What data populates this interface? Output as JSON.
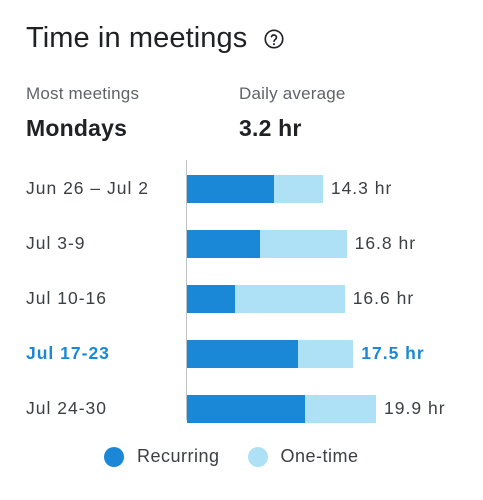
{
  "header": {
    "title": "Time in meetings",
    "help_icon": "help-circle-icon"
  },
  "stats": {
    "most_meetings_label": "Most meetings",
    "most_meetings_value": "Mondays",
    "daily_average_label": "Daily average",
    "daily_average_value": "3.2 hr"
  },
  "colors": {
    "recurring": "#1a88d6",
    "one_time": "#aee0f6",
    "highlight": "#1a88d6"
  },
  "chart_data": {
    "type": "bar",
    "orientation": "horizontal",
    "stacked": true,
    "categories": [
      "Jun 26 – Jul 2",
      "Jul 3-9",
      "Jul 10-16",
      "Jul 17-23",
      "Jul 24-30"
    ],
    "value_labels": [
      "14.3 hr",
      "16.8 hr",
      "16.6 hr",
      "17.5 hr",
      "19.9 hr"
    ],
    "highlighted_index": 3,
    "series": [
      {
        "name": "Recurring",
        "values": [
          9.2,
          7.7,
          5.0,
          11.7,
          12.4
        ]
      },
      {
        "name": "One-time",
        "values": [
          5.1,
          9.1,
          11.6,
          5.8,
          7.5
        ]
      }
    ],
    "xlim": [
      0,
      20
    ]
  },
  "legend": {
    "recurring_label": "Recurring",
    "one_time_label": "One-time"
  }
}
